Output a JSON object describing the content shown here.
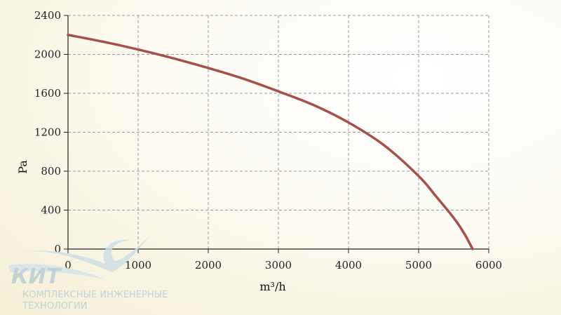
{
  "chart_data": {
    "type": "line",
    "xlabel": "m³/h",
    "ylabel": "Pa",
    "xlim": [
      0,
      6000
    ],
    "ylim": [
      0,
      2400
    ],
    "x_ticks": [
      "0",
      "1000",
      "2000",
      "3000",
      "4000",
      "5000",
      "6000"
    ],
    "y_ticks": [
      "0",
      "400",
      "800",
      "1200",
      "1600",
      "2000",
      "2400"
    ],
    "grid": true,
    "series": [
      {
        "color": "#a5504a",
        "x": [
          0,
          500,
          1000,
          1500,
          2000,
          2500,
          3000,
          3500,
          4000,
          4500,
          5000,
          5250,
          5500,
          5650,
          5770
        ],
        "y": [
          2200,
          2130,
          2050,
          1960,
          1860,
          1750,
          1620,
          1480,
          1300,
          1070,
          750,
          540,
          320,
          160,
          0
        ]
      }
    ]
  },
  "logo": {
    "name": "КИТ",
    "tagline_line1": "КОМПЛЕКСНЫЕ ИНЖЕНЕРНЫЕ",
    "tagline_line2": "ТЕХНОЛОГИИ"
  }
}
